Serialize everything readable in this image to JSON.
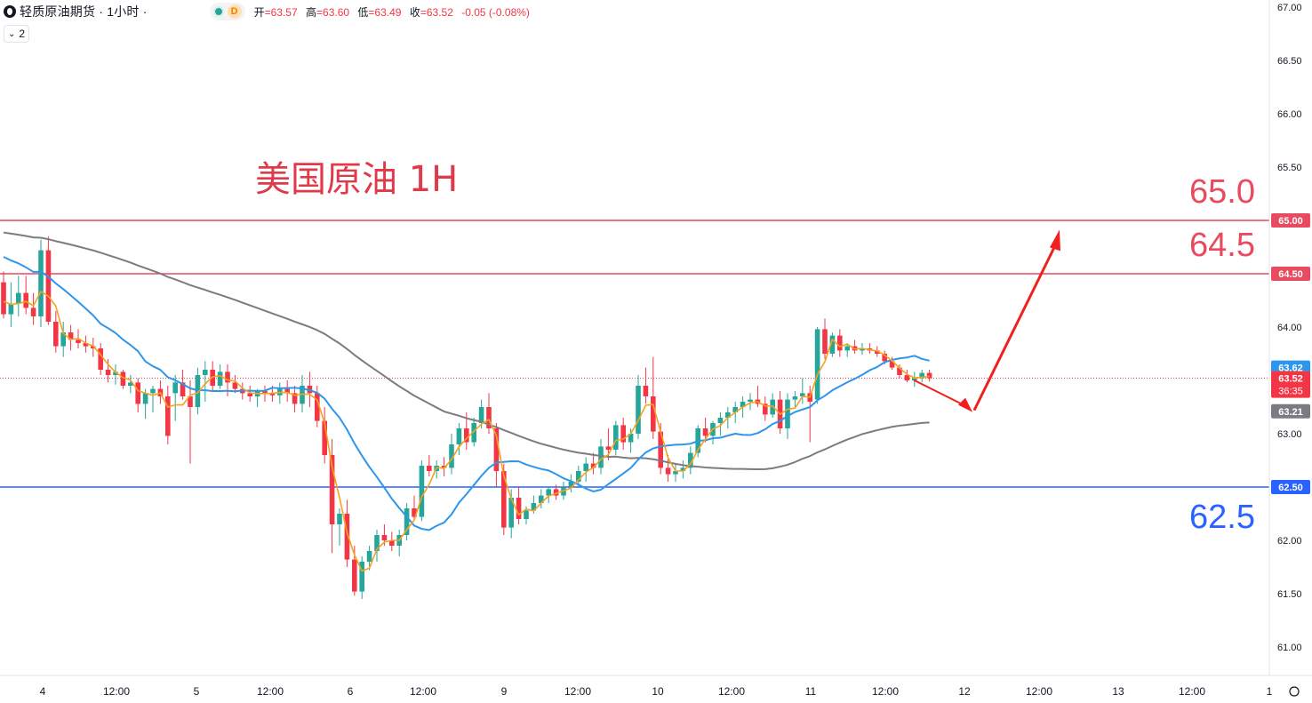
{
  "header": {
    "symbol": "轻质原油期货 · 1小时 ·",
    "status_letter": "D",
    "ohlc": [
      {
        "label": "开",
        "value": "=63.57"
      },
      {
        "label": "高",
        "value": "=63.60"
      },
      {
        "label": "低",
        "value": "=63.49"
      },
      {
        "label": "收",
        "value": "=63.52"
      }
    ],
    "change": "-0.05 (-0.08%)",
    "collapse_count": "2"
  },
  "colors": {
    "up": "#26a69a",
    "down": "#f23645",
    "ma_fast": "#f7a21b",
    "ma_mid": "#2d95ec",
    "ma_slow": "#7b7b84",
    "resistance": "#e84a5f",
    "support": "#2962ff",
    "annotation_red": "#e03a4a",
    "arrow": "#f21f1f"
  },
  "chart_data": {
    "type": "candlestick",
    "title": "美国原油 1H",
    "ylim": [
      60.9,
      67.05
    ],
    "y_ticks": [
      "67.00",
      "66.50",
      "66.00",
      "65.50",
      "65.00",
      "64.50",
      "64.00",
      "63.50",
      "63.00",
      "62.50",
      "62.00",
      "61.50",
      "61.00"
    ],
    "x_ticks": [
      "4",
      "12:00",
      "5",
      "12:00",
      "6",
      "12:00",
      "9",
      "12:00",
      "10",
      "12:00",
      "11",
      "12:00",
      "12",
      "12:00",
      "13",
      "12:00",
      "1"
    ],
    "hlines": [
      {
        "value": 65.0,
        "label": "65.0",
        "axis_label": "65.00",
        "color": "#e84a5f"
      },
      {
        "value": 64.5,
        "label": "64.5",
        "axis_label": "64.50",
        "color": "#e84a5f"
      },
      {
        "value": 62.5,
        "label": "62.5",
        "axis_label": "62.50",
        "color": "#2962ff"
      }
    ],
    "current_price": {
      "value": 63.52,
      "label": "63.52",
      "countdown": "36:35"
    },
    "price_badges": [
      {
        "value": 63.62,
        "label": "63.62",
        "color": "#2d95ec"
      },
      {
        "value": 63.52,
        "label": "63.52",
        "color": "#f7a21b"
      },
      {
        "value": 63.21,
        "label": "63.21",
        "color": "#7b7b84"
      }
    ],
    "candles": [
      [
        64.42,
        64.52,
        64.08,
        64.12
      ],
      [
        64.12,
        64.42,
        64.0,
        64.22
      ],
      [
        64.22,
        64.48,
        64.1,
        64.32
      ],
      [
        64.32,
        64.48,
        64.12,
        64.18
      ],
      [
        64.18,
        64.32,
        64.02,
        64.1
      ],
      [
        64.1,
        64.82,
        64.0,
        64.72
      ],
      [
        64.72,
        64.85,
        64.02,
        64.05
      ],
      [
        64.05,
        64.15,
        63.76,
        63.82
      ],
      [
        63.82,
        64.05,
        63.72,
        63.95
      ],
      [
        63.95,
        64.02,
        63.78,
        63.88
      ],
      [
        63.88,
        63.98,
        63.8,
        63.85
      ],
      [
        63.85,
        63.92,
        63.76,
        63.82
      ],
      [
        63.82,
        63.9,
        63.72,
        63.8
      ],
      [
        63.8,
        63.85,
        63.55,
        63.6
      ],
      [
        63.6,
        63.7,
        63.48,
        63.55
      ],
      [
        63.55,
        63.65,
        63.46,
        63.58
      ],
      [
        63.58,
        63.6,
        63.42,
        63.45
      ],
      [
        63.45,
        63.55,
        63.38,
        63.48
      ],
      [
        63.48,
        63.52,
        63.2,
        63.28
      ],
      [
        63.28,
        63.42,
        63.14,
        63.38
      ],
      [
        63.38,
        63.45,
        63.2,
        63.42
      ],
      [
        63.42,
        63.5,
        63.28,
        63.35
      ],
      [
        63.35,
        63.45,
        62.9,
        62.98
      ],
      [
        63.38,
        63.55,
        63.12,
        63.48
      ],
      [
        63.48,
        63.6,
        63.32,
        63.35
      ],
      [
        63.35,
        63.5,
        62.72,
        63.25
      ],
      [
        63.25,
        63.62,
        63.18,
        63.55
      ],
      [
        63.55,
        63.68,
        63.3,
        63.6
      ],
      [
        63.6,
        63.68,
        63.4,
        63.45
      ],
      [
        63.45,
        63.65,
        63.42,
        63.58
      ],
      [
        63.58,
        63.65,
        63.35,
        63.48
      ],
      [
        63.48,
        63.55,
        63.38,
        63.42
      ],
      [
        63.42,
        63.48,
        63.32,
        63.38
      ],
      [
        63.38,
        63.45,
        63.3,
        63.35
      ],
      [
        63.35,
        63.42,
        63.25,
        63.4
      ],
      [
        63.4,
        63.45,
        63.3,
        63.38
      ],
      [
        63.38,
        63.45,
        63.3,
        63.36
      ],
      [
        63.36,
        63.48,
        63.28,
        63.42
      ],
      [
        63.42,
        63.5,
        63.3,
        63.38
      ],
      [
        63.38,
        63.45,
        63.2,
        63.28
      ],
      [
        63.28,
        63.55,
        63.2,
        63.45
      ],
      [
        63.45,
        63.58,
        63.25,
        63.38
      ],
      [
        63.38,
        63.45,
        63.06,
        63.12
      ],
      [
        63.12,
        63.25,
        62.72,
        62.8
      ],
      [
        62.8,
        62.95,
        61.88,
        62.15
      ],
      [
        62.15,
        62.3,
        61.95,
        62.25
      ],
      [
        62.25,
        62.38,
        61.75,
        61.82
      ],
      [
        61.82,
        61.95,
        61.48,
        61.52
      ],
      [
        61.52,
        61.85,
        61.45,
        61.8
      ],
      [
        61.8,
        61.95,
        61.72,
        61.9
      ],
      [
        61.9,
        62.1,
        61.8,
        62.05
      ],
      [
        62.05,
        62.15,
        61.95,
        62.0
      ],
      [
        62.0,
        62.08,
        61.9,
        61.95
      ],
      [
        61.95,
        62.1,
        61.85,
        62.05
      ],
      [
        62.05,
        62.35,
        62.0,
        62.3
      ],
      [
        62.3,
        62.42,
        62.18,
        62.22
      ],
      [
        62.22,
        62.75,
        62.18,
        62.7
      ],
      [
        62.7,
        62.8,
        62.6,
        62.65
      ],
      [
        62.65,
        62.75,
        62.58,
        62.7
      ],
      [
        62.7,
        62.78,
        62.6,
        62.68
      ],
      [
        62.68,
        63.0,
        62.62,
        62.9
      ],
      [
        62.9,
        63.1,
        62.8,
        63.05
      ],
      [
        63.05,
        63.2,
        62.85,
        62.92
      ],
      [
        62.92,
        63.15,
        62.88,
        63.1
      ],
      [
        63.1,
        63.32,
        63.05,
        63.25
      ],
      [
        63.25,
        63.38,
        63.0,
        63.05
      ],
      [
        63.05,
        63.1,
        62.5,
        62.65
      ],
      [
        62.65,
        62.72,
        62.05,
        62.12
      ],
      [
        62.12,
        62.48,
        62.02,
        62.4
      ],
      [
        62.4,
        62.5,
        62.15,
        62.2
      ],
      [
        62.2,
        62.32,
        62.15,
        62.28
      ],
      [
        62.28,
        62.42,
        62.25,
        62.35
      ],
      [
        62.35,
        62.48,
        62.3,
        62.42
      ],
      [
        62.42,
        62.5,
        62.35,
        62.48
      ],
      [
        62.48,
        62.52,
        62.38,
        62.42
      ],
      [
        62.42,
        62.55,
        62.38,
        62.5
      ],
      [
        62.5,
        62.62,
        62.45,
        62.55
      ],
      [
        62.55,
        62.7,
        62.5,
        62.65
      ],
      [
        62.65,
        62.78,
        62.55,
        62.72
      ],
      [
        62.72,
        62.82,
        62.62,
        62.68
      ],
      [
        62.68,
        62.95,
        62.62,
        62.88
      ],
      [
        62.88,
        63.05,
        62.75,
        62.85
      ],
      [
        62.85,
        63.12,
        62.8,
        63.08
      ],
      [
        63.08,
        63.15,
        62.85,
        62.92
      ],
      [
        62.92,
        63.05,
        62.82,
        63.0
      ],
      [
        63.0,
        63.55,
        62.95,
        63.45
      ],
      [
        63.45,
        63.62,
        63.28,
        63.35
      ],
      [
        63.35,
        63.72,
        62.95,
        63.02
      ],
      [
        63.02,
        63.1,
        62.62,
        62.68
      ],
      [
        62.68,
        62.8,
        62.55,
        62.62
      ],
      [
        62.62,
        62.72,
        62.55,
        62.65
      ],
      [
        62.65,
        62.75,
        62.58,
        62.68
      ],
      [
        62.68,
        62.88,
        62.62,
        62.82
      ],
      [
        62.82,
        63.08,
        62.78,
        63.05
      ],
      [
        63.05,
        63.15,
        62.92,
        62.98
      ],
      [
        62.98,
        63.12,
        62.9,
        63.1
      ],
      [
        63.1,
        63.2,
        62.98,
        63.15
      ],
      [
        63.15,
        63.25,
        63.05,
        63.2
      ],
      [
        63.2,
        63.3,
        63.1,
        63.25
      ],
      [
        63.25,
        63.35,
        63.15,
        63.3
      ],
      [
        63.3,
        63.38,
        63.22,
        63.32
      ],
      [
        63.32,
        63.45,
        63.25,
        63.28
      ],
      [
        63.28,
        63.35,
        63.12,
        63.18
      ],
      [
        63.18,
        63.38,
        63.15,
        63.32
      ],
      [
        63.32,
        63.4,
        63.0,
        63.05
      ],
      [
        63.05,
        63.38,
        62.95,
        63.32
      ],
      [
        63.32,
        63.4,
        63.25,
        63.35
      ],
      [
        63.35,
        63.52,
        63.28,
        63.38
      ],
      [
        63.38,
        63.45,
        62.92,
        63.3
      ],
      [
        63.32,
        64.0,
        63.28,
        63.98
      ],
      [
        63.98,
        64.08,
        63.7,
        63.75
      ],
      [
        63.75,
        63.95,
        63.72,
        63.92
      ],
      [
        63.92,
        63.98,
        63.72,
        63.78
      ],
      [
        63.78,
        63.85,
        63.72,
        63.82
      ],
      [
        63.82,
        63.88,
        63.75,
        63.78
      ],
      [
        63.78,
        63.85,
        63.74,
        63.8
      ],
      [
        63.8,
        63.85,
        63.75,
        63.78
      ],
      [
        63.78,
        63.82,
        63.72,
        63.75
      ],
      [
        63.75,
        63.78,
        63.65,
        63.68
      ],
      [
        63.68,
        63.72,
        63.6,
        63.62
      ],
      [
        63.62,
        63.65,
        63.52,
        63.55
      ],
      [
        63.55,
        63.6,
        63.48,
        63.5
      ],
      [
        63.5,
        63.58,
        63.44,
        63.52
      ],
      [
        63.52,
        63.6,
        63.48,
        63.57
      ],
      [
        63.57,
        63.6,
        63.49,
        63.52
      ]
    ],
    "projection": [
      {
        "label": "pullback",
        "from": 63.52,
        "to": 63.22
      },
      {
        "label": "rally",
        "from": 63.22,
        "to": 64.88
      }
    ]
  }
}
